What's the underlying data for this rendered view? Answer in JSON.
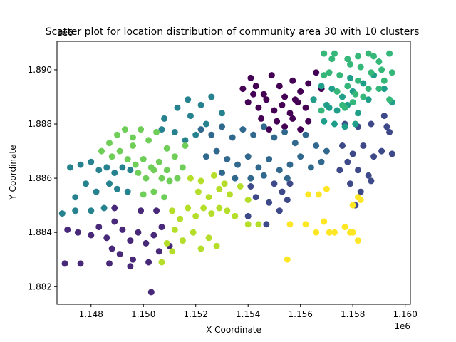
{
  "chart_data": {
    "type": "scatter",
    "title": "Scatter plot for location distribution of community area 30 with 10 clusters",
    "xlabel": "X Coordinate",
    "ylabel": "Y Coordinate",
    "x_offset_label": "1e6",
    "y_offset_label": "1e6",
    "xlim": [
      1146700,
      1160200
    ],
    "ylim": [
      1881350,
      1891050
    ],
    "x_ticks": [
      1148000,
      1150000,
      1152000,
      1154000,
      1156000,
      1158000,
      1160000
    ],
    "x_tick_labels": [
      "1.148",
      "1.150",
      "1.152",
      "1.154",
      "1.156",
      "1.158",
      "1.160"
    ],
    "y_ticks": [
      1882000,
      1884000,
      1886000,
      1888000,
      1890000
    ],
    "y_tick_labels": [
      "1.882",
      "1.884",
      "1.886",
      "1.888",
      "1.890"
    ],
    "grid": false,
    "colors": [
      "#440154",
      "#482878",
      "#3e4989",
      "#31688e",
      "#26828e",
      "#1f9e89",
      "#35b779",
      "#6ece58",
      "#b5de2b",
      "#fde725"
    ],
    "series": [
      {
        "color": "#440154",
        "points": [
          [
            1153800,
            1889300
          ],
          [
            1154100,
            1889700
          ],
          [
            1154300,
            1889400
          ],
          [
            1154600,
            1889100
          ],
          [
            1154900,
            1889800
          ],
          [
            1155200,
            1889400
          ],
          [
            1155400,
            1889000
          ],
          [
            1155700,
            1889600
          ],
          [
            1156000,
            1889200
          ],
          [
            1156300,
            1889500
          ],
          [
            1156600,
            1889900
          ],
          [
            1154000,
            1888800
          ],
          [
            1154400,
            1888600
          ],
          [
            1154700,
            1888900
          ],
          [
            1155000,
            1888500
          ],
          [
            1155300,
            1888700
          ],
          [
            1155600,
            1888400
          ],
          [
            1155900,
            1888800
          ],
          [
            1156200,
            1888600
          ],
          [
            1156500,
            1888900
          ],
          [
            1155100,
            1888100
          ],
          [
            1155400,
            1887900
          ],
          [
            1155700,
            1888200
          ],
          [
            1156000,
            1887800
          ],
          [
            1156300,
            1888100
          ],
          [
            1154500,
            1888200
          ],
          [
            1154800,
            1887800
          ],
          [
            1156800,
            1889300
          ],
          [
            1155800,
            1888900
          ],
          [
            1154200,
            1889100
          ]
        ]
      },
      {
        "color": "#482878",
        "points": [
          [
            1147100,
            1884100
          ],
          [
            1147500,
            1884000
          ],
          [
            1148000,
            1883900
          ],
          [
            1148300,
            1884200
          ],
          [
            1148600,
            1883800
          ],
          [
            1148900,
            1884400
          ],
          [
            1149200,
            1884100
          ],
          [
            1149500,
            1883700
          ],
          [
            1149800,
            1884000
          ],
          [
            1150100,
            1883600
          ],
          [
            1150400,
            1883900
          ],
          [
            1150700,
            1884200
          ],
          [
            1151000,
            1883500
          ],
          [
            1148800,
            1883400
          ],
          [
            1149100,
            1883200
          ],
          [
            1149600,
            1883000
          ],
          [
            1150200,
            1882900
          ],
          [
            1150600,
            1883300
          ],
          [
            1147000,
            1882850
          ],
          [
            1147600,
            1882850
          ],
          [
            1148700,
            1882850
          ],
          [
            1149500,
            1882750
          ],
          [
            1150300,
            1881800
          ],
          [
            1148900,
            1884900
          ],
          [
            1149900,
            1884800
          ],
          [
            1150500,
            1884800
          ]
        ]
      },
      {
        "color": "#3e4989",
        "points": [
          [
            1157700,
            1888000
          ],
          [
            1158200,
            1887900
          ],
          [
            1158700,
            1888000
          ],
          [
            1159200,
            1888300
          ],
          [
            1159400,
            1887700
          ],
          [
            1157600,
            1887200
          ],
          [
            1158000,
            1886900
          ],
          [
            1158400,
            1887200
          ],
          [
            1158800,
            1886800
          ],
          [
            1159100,
            1887000
          ],
          [
            1159500,
            1886900
          ],
          [
            1157800,
            1886600
          ],
          [
            1158200,
            1886300
          ],
          [
            1157900,
            1885800
          ],
          [
            1158300,
            1885500
          ],
          [
            1158700,
            1885900
          ],
          [
            1158100,
            1885000
          ],
          [
            1159300,
            1887900
          ],
          [
            1157500,
            1886300
          ],
          [
            1158600,
            1886100
          ],
          [
            1155000,
            1885800
          ],
          [
            1155300,
            1885500
          ],
          [
            1155600,
            1885800
          ],
          [
            1154800,
            1885100
          ],
          [
            1155200,
            1884800
          ],
          [
            1154700,
            1884300
          ],
          [
            1154300,
            1885300
          ],
          [
            1154100,
            1885700
          ],
          [
            1155500,
            1885200
          ],
          [
            1154000,
            1884600
          ]
        ]
      },
      {
        "color": "#31688e",
        "points": [
          [
            1152200,
            1887800
          ],
          [
            1152600,
            1887600
          ],
          [
            1153000,
            1887900
          ],
          [
            1153400,
            1887500
          ],
          [
            1153800,
            1887800
          ],
          [
            1154200,
            1887600
          ],
          [
            1154600,
            1887900
          ],
          [
            1155000,
            1887500
          ],
          [
            1155400,
            1887700
          ],
          [
            1155800,
            1887300
          ],
          [
            1156200,
            1887600
          ],
          [
            1156600,
            1887200
          ],
          [
            1157000,
            1887000
          ],
          [
            1152800,
            1887000
          ],
          [
            1153200,
            1886700
          ],
          [
            1153600,
            1886500
          ],
          [
            1154000,
            1886800
          ],
          [
            1154400,
            1886400
          ],
          [
            1154800,
            1886700
          ],
          [
            1155200,
            1886300
          ],
          [
            1155600,
            1886500
          ],
          [
            1156000,
            1886800
          ],
          [
            1156400,
            1886400
          ],
          [
            1153000,
            1886200
          ],
          [
            1153500,
            1886000
          ],
          [
            1154100,
            1886000
          ],
          [
            1154600,
            1886100
          ],
          [
            1155500,
            1886000
          ],
          [
            1152400,
            1886800
          ],
          [
            1156800,
            1886600
          ]
        ]
      },
      {
        "color": "#26828e",
        "points": [
          [
            1147200,
            1886400
          ],
          [
            1147600,
            1886500
          ],
          [
            1148000,
            1886600
          ],
          [
            1148300,
            1886300
          ],
          [
            1148600,
            1886400
          ],
          [
            1148900,
            1886200
          ],
          [
            1149200,
            1886400
          ],
          [
            1149500,
            1886300
          ],
          [
            1147800,
            1885800
          ],
          [
            1147400,
            1885300
          ],
          [
            1148200,
            1885500
          ],
          [
            1148700,
            1885800
          ],
          [
            1149000,
            1885600
          ],
          [
            1149400,
            1885500
          ],
          [
            1148000,
            1884800
          ],
          [
            1148500,
            1884900
          ],
          [
            1147400,
            1884800
          ],
          [
            1146900,
            1884700
          ],
          [
            1150800,
            1888200
          ],
          [
            1151300,
            1888600
          ],
          [
            1151700,
            1888900
          ],
          [
            1152200,
            1888700
          ],
          [
            1152600,
            1889000
          ],
          [
            1151800,
            1888300
          ],
          [
            1152400,
            1888000
          ],
          [
            1153000,
            1888400
          ],
          [
            1151200,
            1887700
          ],
          [
            1151600,
            1887400
          ],
          [
            1150700,
            1887800
          ],
          [
            1152000,
            1887600
          ]
        ]
      },
      {
        "color": "#1f9e89",
        "points": [
          [
            1156500,
            1888900
          ],
          [
            1157000,
            1888700
          ],
          [
            1157400,
            1888500
          ],
          [
            1157800,
            1888700
          ],
          [
            1158200,
            1888400
          ],
          [
            1156900,
            1888100
          ],
          [
            1157300,
            1888000
          ],
          [
            1157700,
            1887900
          ],
          [
            1158100,
            1888000
          ],
          [
            1157200,
            1889300
          ],
          [
            1157600,
            1889000
          ],
          [
            1158000,
            1889200
          ],
          [
            1158400,
            1889500
          ],
          [
            1158800,
            1889800
          ],
          [
            1159200,
            1889300
          ],
          [
            1159500,
            1888800
          ],
          [
            1157100,
            1888600
          ],
          [
            1156800,
            1889400
          ],
          [
            1157900,
            1889700
          ],
          [
            1158600,
            1888900
          ]
        ]
      },
      {
        "color": "#35b779",
        "points": [
          [
            1156900,
            1890600
          ],
          [
            1157300,
            1890600
          ],
          [
            1157800,
            1890400
          ],
          [
            1158200,
            1890500
          ],
          [
            1158600,
            1890600
          ],
          [
            1159000,
            1890300
          ],
          [
            1159400,
            1890600
          ],
          [
            1157100,
            1889900
          ],
          [
            1157500,
            1889800
          ],
          [
            1157900,
            1890200
          ],
          [
            1158300,
            1890100
          ],
          [
            1158700,
            1889900
          ],
          [
            1159100,
            1890000
          ],
          [
            1159500,
            1889900
          ],
          [
            1157400,
            1889200
          ],
          [
            1157800,
            1889400
          ],
          [
            1158200,
            1889600
          ],
          [
            1158600,
            1889300
          ],
          [
            1159000,
            1889300
          ],
          [
            1159400,
            1888900
          ],
          [
            1157600,
            1888700
          ],
          [
            1158000,
            1888800
          ],
          [
            1158400,
            1889000
          ],
          [
            1156900,
            1889800
          ],
          [
            1157200,
            1890400
          ],
          [
            1158800,
            1890500
          ],
          [
            1159200,
            1889600
          ],
          [
            1157700,
            1888600
          ],
          [
            1158100,
            1889100
          ],
          [
            1156800,
            1888500
          ]
        ]
      },
      {
        "color": "#6ece58",
        "points": [
          [
            1148400,
            1887000
          ],
          [
            1148700,
            1887300
          ],
          [
            1149000,
            1887600
          ],
          [
            1149300,
            1887800
          ],
          [
            1149600,
            1887500
          ],
          [
            1149900,
            1887800
          ],
          [
            1150200,
            1887400
          ],
          [
            1150500,
            1887700
          ],
          [
            1148800,
            1886800
          ],
          [
            1149100,
            1887000
          ],
          [
            1149400,
            1886700
          ],
          [
            1149700,
            1886500
          ],
          [
            1150000,
            1886700
          ],
          [
            1150300,
            1886400
          ],
          [
            1150600,
            1886600
          ],
          [
            1150900,
            1886300
          ],
          [
            1151200,
            1886800
          ],
          [
            1151500,
            1886400
          ],
          [
            1149800,
            1886200
          ],
          [
            1150100,
            1886000
          ],
          [
            1150400,
            1886300
          ],
          [
            1150700,
            1886000
          ],
          [
            1151000,
            1885900
          ],
          [
            1150000,
            1885400
          ],
          [
            1150400,
            1885500
          ],
          [
            1150800,
            1885300
          ],
          [
            1149600,
            1887200
          ],
          [
            1150900,
            1887100
          ],
          [
            1151600,
            1887200
          ],
          [
            1151300,
            1886000
          ]
        ]
      },
      {
        "color": "#b5de2b",
        "points": [
          [
            1151100,
            1884800
          ],
          [
            1151400,
            1884500
          ],
          [
            1151700,
            1884900
          ],
          [
            1152000,
            1884600
          ],
          [
            1152300,
            1884900
          ],
          [
            1152600,
            1884700
          ],
          [
            1152900,
            1884900
          ],
          [
            1153200,
            1884800
          ],
          [
            1153500,
            1884600
          ],
          [
            1152100,
            1885500
          ],
          [
            1152500,
            1885300
          ],
          [
            1152900,
            1885600
          ],
          [
            1153300,
            1885400
          ],
          [
            1153700,
            1885700
          ],
          [
            1154000,
            1885200
          ],
          [
            1151800,
            1886000
          ],
          [
            1152200,
            1885900
          ],
          [
            1152700,
            1886100
          ],
          [
            1153100,
            1885800
          ],
          [
            1151200,
            1884100
          ],
          [
            1151500,
            1883700
          ],
          [
            1151900,
            1884000
          ],
          [
            1152200,
            1883400
          ],
          [
            1152500,
            1883800
          ],
          [
            1152800,
            1883500
          ],
          [
            1151100,
            1883300
          ],
          [
            1150900,
            1883600
          ],
          [
            1150700,
            1882900
          ],
          [
            1154000,
            1884300
          ],
          [
            1154400,
            1884300
          ]
        ]
      },
      {
        "color": "#fde725",
        "points": [
          [
            1155500,
            1883000
          ],
          [
            1155600,
            1884300
          ],
          [
            1156200,
            1884300
          ],
          [
            1156600,
            1884000
          ],
          [
            1156900,
            1884400
          ],
          [
            1157300,
            1884000
          ],
          [
            1157700,
            1884200
          ],
          [
            1157900,
            1884000
          ],
          [
            1158200,
            1883700
          ],
          [
            1156700,
            1885400
          ],
          [
            1157000,
            1885600
          ],
          [
            1158000,
            1885000
          ],
          [
            1158200,
            1885300
          ],
          [
            1158300,
            1885200
          ],
          [
            1157100,
            1884000
          ],
          [
            1158000,
            1884000
          ],
          [
            1156300,
            1885400
          ]
        ]
      }
    ]
  }
}
